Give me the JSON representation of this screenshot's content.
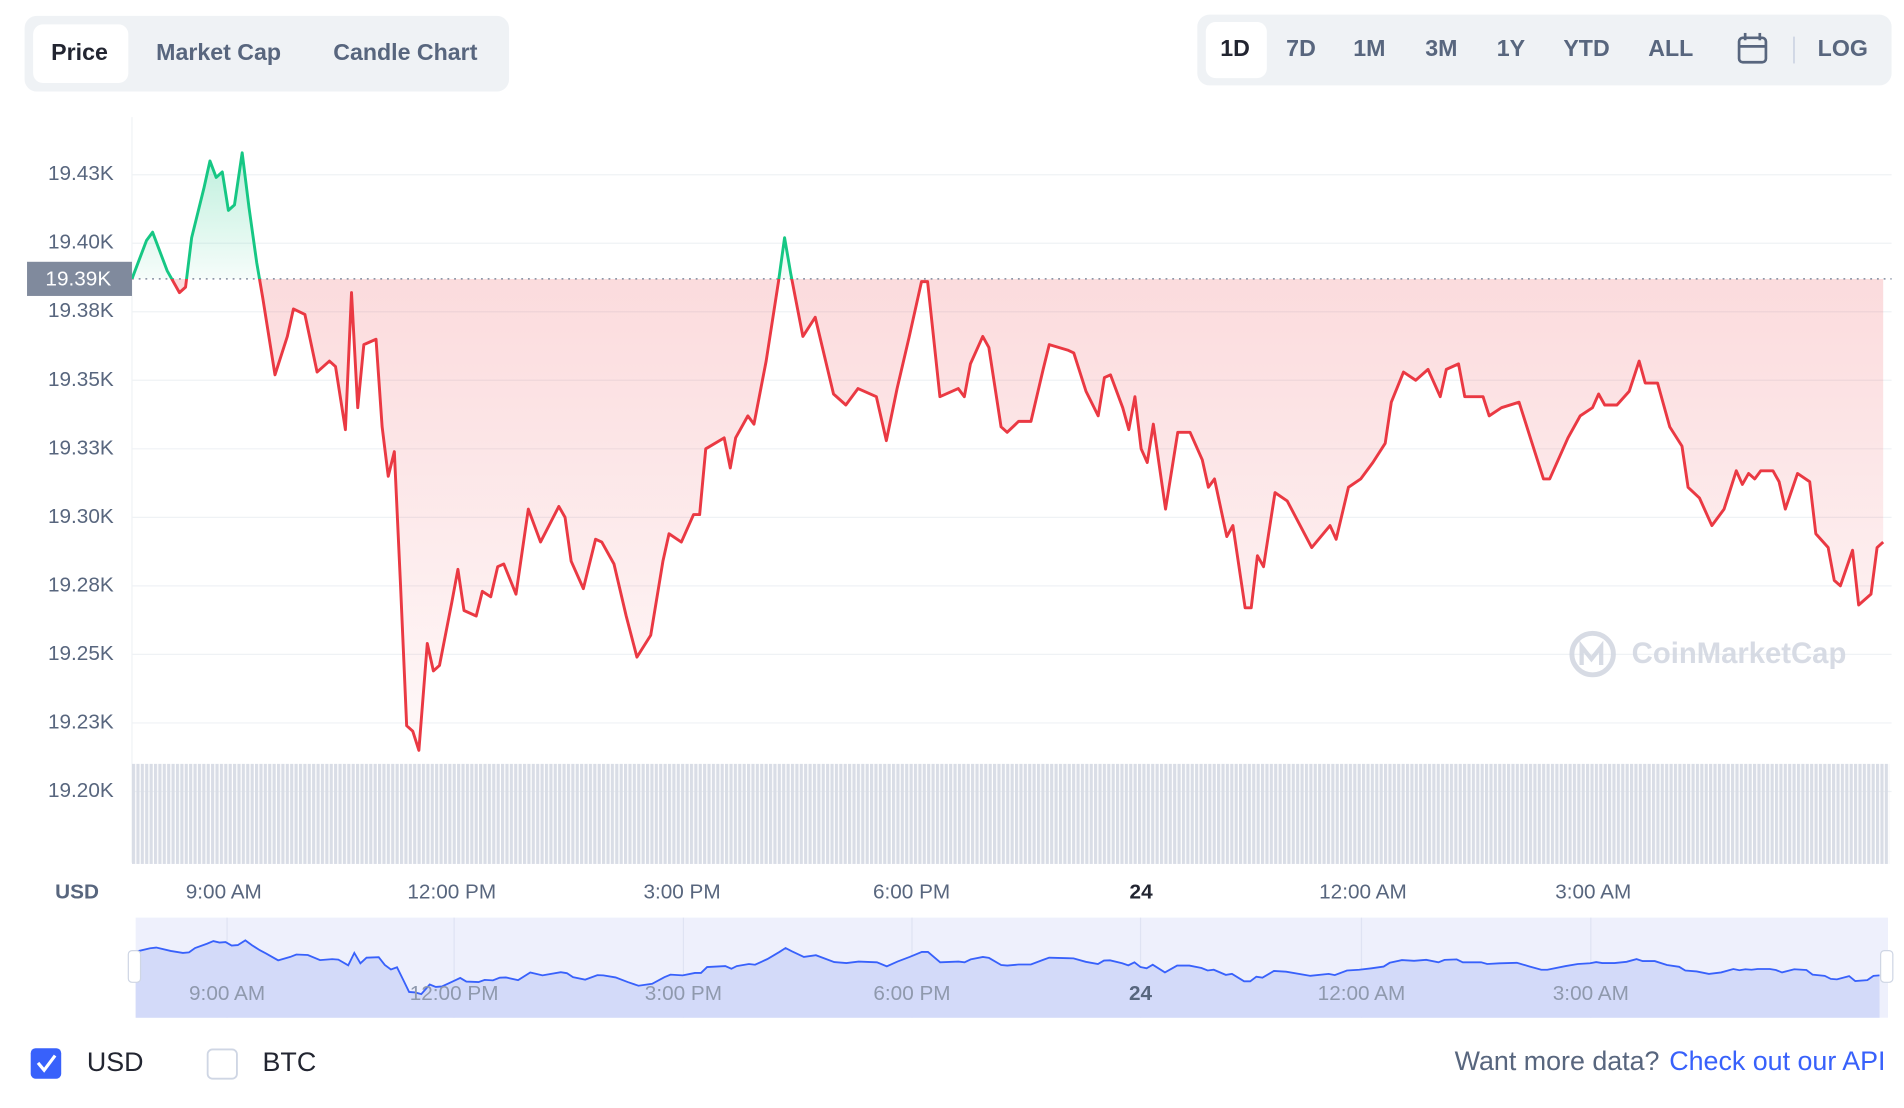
{
  "ui": {
    "tabs": [
      "Price",
      "Market Cap",
      "Candle Chart"
    ],
    "ranges": [
      "1D",
      "7D",
      "1M",
      "3M",
      "1Y",
      "YTD",
      "ALL"
    ],
    "log": "LOG",
    "currencies": [
      "USD",
      "BTC"
    ],
    "api_prompt": "Want more data?",
    "api_link": "Check out our API",
    "watermark": "CoinMarketCap"
  },
  "chart_data": {
    "type": "line",
    "ylabel": "USD",
    "x": [
      0,
      0.19,
      0.27,
      0.46,
      0.62,
      0.7,
      0.78,
      0.94,
      1.02,
      1.1,
      1.18,
      1.26,
      1.34,
      1.44,
      1.53,
      1.63,
      1.71,
      1.87,
      2.03,
      2.11,
      2.26,
      2.42,
      2.58,
      2.66,
      2.79,
      2.87,
      2.95,
      3.03,
      3.19,
      3.27,
      3.35,
      3.43,
      3.51,
      3.59,
      3.67,
      3.75,
      3.86,
      3.94,
      4.02,
      4.18,
      4.26,
      4.34,
      4.5,
      4.58,
      4.69,
      4.78,
      4.86,
      5.02,
      5.18,
      5.34,
      5.58,
      5.66,
      5.74,
      5.9,
      6.06,
      6.14,
      6.3,
      6.46,
      6.6,
      6.78,
      6.94,
      7.02,
      7.18,
      7.34,
      7.42,
      7.5,
      7.74,
      7.82,
      7.89,
      8.05,
      8.13,
      8.29,
      8.45,
      8.53,
      8.61,
      8.77,
      8.93,
      9.17,
      9.33,
      9.49,
      9.73,
      9.86,
      10.0,
      10.16,
      10.32,
      10.4,
      10.56,
      10.8,
      10.88,
      10.96,
      11.12,
      11.2,
      11.36,
      11.44,
      11.59,
      11.75,
      11.91,
      11.99,
      12.23,
      12.31,
      12.47,
      12.63,
      12.71,
      12.79,
      12.95,
      13.03,
      13.11,
      13.19,
      13.27,
      13.35,
      13.51,
      13.67,
      13.83,
      13.99,
      14.07,
      14.15,
      14.31,
      14.39,
      14.55,
      14.63,
      14.71,
      14.79,
      14.94,
      15.1,
      15.42,
      15.66,
      15.74,
      15.9,
      16.06,
      16.22,
      16.38,
      16.46,
      16.62,
      16.78,
      16.94,
      17.1,
      17.18,
      17.34,
      17.42,
      17.66,
      17.74,
      17.9,
      18.13,
      18.29,
      18.45,
      18.53,
      18.77,
      18.93,
      19.09,
      19.17,
      19.25,
      19.41,
      19.57,
      19.7,
      19.78,
      19.94,
      20.1,
      20.26,
      20.34,
      20.49,
      20.65,
      20.81,
      20.97,
      21.05,
      21.13,
      21.21,
      21.29,
      21.45,
      21.53,
      21.61,
      21.77,
      21.93,
      22.01,
      22.17,
      22.25,
      22.33,
      22.49,
      22.57,
      22.73,
      22.81,
      22.89
    ],
    "values": [
      19387,
      19401,
      19404,
      19390,
      19382,
      19384,
      19402,
      19420,
      19430,
      19424,
      19426,
      19412,
      19414,
      19433,
      19413,
      19393,
      19380,
      19352,
      19366,
      19376,
      19374,
      19353,
      19357,
      19355,
      19332,
      19382,
      19340,
      19363,
      19365,
      19333,
      19315,
      19324,
      19275,
      19224,
      19222,
      19215,
      19254,
      19244,
      19246,
      19269,
      19281,
      19266,
      19264,
      19273,
      19271,
      19282,
      19283,
      19272,
      19303,
      19291,
      19304,
      19300,
      19284,
      19274,
      19292,
      19291,
      19283,
      19264,
      19249,
      19257,
      19284,
      19294,
      19291,
      19301,
      19301,
      19325,
      19329,
      19318,
      19329,
      19337,
      19334,
      19357,
      19386,
      19402,
      19389,
      19366,
      19373,
      19345,
      19341,
      19347,
      19344,
      19328,
      19347,
      19366,
      19386,
      19386,
      19344,
      19347,
      19344,
      19356,
      19366,
      19362,
      19333,
      19331,
      19335,
      19335,
      19354,
      19363,
      19361,
      19360,
      19346,
      19337,
      19351,
      19352,
      19340,
      19332,
      19344,
      19325,
      19320,
      19334,
      19303,
      19331,
      19331,
      19321,
      19311,
      19314,
      19293,
      19297,
      19267,
      19267,
      19286,
      19282,
      19309,
      19306,
      19289,
      19297,
      19292,
      19311,
      19314,
      19320,
      19327,
      19342,
      19353,
      19350,
      19354,
      19344,
      19354,
      19356,
      19344,
      19344,
      19337,
      19340,
      19342,
      19328,
      19314,
      19314,
      19329,
      19337,
      19340,
      19345,
      19341,
      19341,
      19346,
      19357,
      19349,
      19349,
      19333,
      19326,
      19311,
      19307,
      19297,
      19303,
      19317,
      19312,
      19316,
      19314,
      19317,
      19317,
      19313,
      19303,
      19316,
      19313,
      19294,
      19289,
      19277,
      19275,
      19288,
      19268,
      19272,
      19289,
      19291
    ],
    "reference": {
      "value": 19387,
      "label": "19.39K"
    },
    "colors": {
      "up": "#16c784",
      "down": "#ea3943",
      "navigator": "#3861fb"
    },
    "xlim": [
      0,
      23
    ],
    "ylim": [
      19174,
      19446
    ],
    "xticks": [
      {
        "value": 1.2,
        "label": "9:00 AM"
      },
      {
        "value": 4.18,
        "label": "12:00 PM"
      },
      {
        "value": 7.19,
        "label": "3:00 PM"
      },
      {
        "value": 10.19,
        "label": "6:00 PM"
      },
      {
        "value": 13.19,
        "label": "24"
      },
      {
        "value": 16.09,
        "label": "12:00 AM"
      },
      {
        "value": 19.1,
        "label": "3:00 AM"
      }
    ],
    "yticks": [
      {
        "value": 19200,
        "label": "19.20K"
      },
      {
        "value": 19225,
        "label": "19.23K"
      },
      {
        "value": 19250,
        "label": "19.25K"
      },
      {
        "value": 19275,
        "label": "19.28K"
      },
      {
        "value": 19300,
        "label": "19.30K"
      },
      {
        "value": 19325,
        "label": "19.33K"
      },
      {
        "value": 19350,
        "label": "19.35K"
      },
      {
        "value": 19375,
        "label": "19.38K"
      },
      {
        "value": 19400,
        "label": "19.40K"
      },
      {
        "value": 19425,
        "label": "19.43K"
      }
    ],
    "grid": true
  }
}
